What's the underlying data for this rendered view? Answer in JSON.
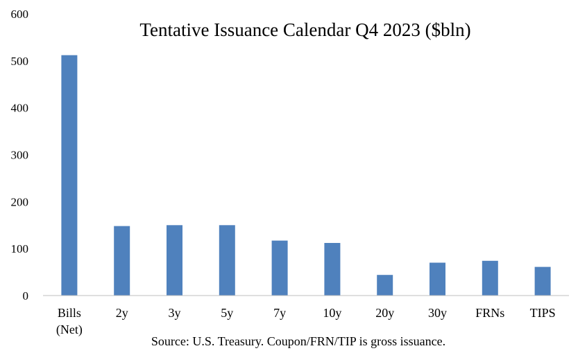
{
  "chart_data": {
    "type": "bar",
    "title": "Tentative Issuance Calendar Q4 2023 ($bln)",
    "source_note": "Source: U.S. Treasury. Coupon/FRN/TIP is gross issuance.",
    "categories": [
      [
        "Bills",
        "(Net)"
      ],
      [
        "2y"
      ],
      [
        "3y"
      ],
      [
        "5y"
      ],
      [
        "7y"
      ],
      [
        "10y"
      ],
      [
        "20y"
      ],
      [
        "30y"
      ],
      [
        "FRNs"
      ],
      [
        "TIPS"
      ]
    ],
    "values": [
      512,
      148,
      150,
      150,
      117,
      112,
      44,
      70,
      74,
      61
    ],
    "ylim": [
      0,
      600
    ],
    "yticks": [
      0,
      100,
      200,
      300,
      400,
      500,
      600
    ],
    "grid": false,
    "legend": "none",
    "bar_color": "#4F81BD",
    "xlabel": "",
    "ylabel": ""
  }
}
